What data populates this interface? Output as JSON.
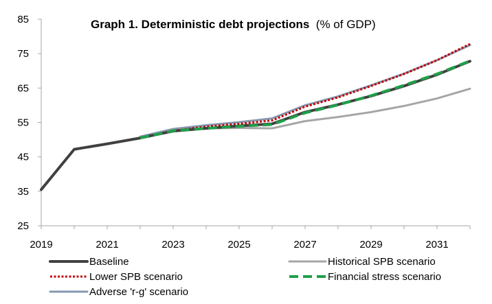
{
  "chart_data": {
    "type": "line",
    "title": "Graph 1. Deterministic debt projections",
    "subtitle": "(% of GDP)",
    "xlabel": "",
    "ylabel": "",
    "x": [
      2019,
      2020,
      2021,
      2022,
      2023,
      2024,
      2025,
      2026,
      2027,
      2028,
      2029,
      2030,
      2031,
      2032
    ],
    "xlim": [
      2019,
      2032
    ],
    "ylim": [
      25,
      85
    ],
    "x_ticks": [
      2019,
      2021,
      2023,
      2025,
      2027,
      2029,
      2031
    ],
    "y_ticks": [
      25,
      35,
      45,
      55,
      65,
      75,
      85
    ],
    "grid": false,
    "legend_position": "bottom",
    "series": [
      {
        "name": "Baseline",
        "color": "#404040",
        "style": "solid",
        "values": [
          35.5,
          47.2,
          48.8,
          50.5,
          52.5,
          53.3,
          54.0,
          54.6,
          58.0,
          60.2,
          62.7,
          65.6,
          68.9,
          72.8
        ]
      },
      {
        "name": "Historical SPB scenario",
        "color": "#a6a6a6",
        "style": "solid",
        "values": [
          null,
          null,
          null,
          50.5,
          52.8,
          53.3,
          53.4,
          53.3,
          55.4,
          56.6,
          58.0,
          59.8,
          62.0,
          64.8
        ]
      },
      {
        "name": "Lower SPB scenario",
        "color": "#c00000",
        "style": "dotted",
        "values": [
          null,
          null,
          null,
          50.5,
          52.6,
          53.8,
          54.6,
          55.6,
          59.6,
          62.3,
          65.6,
          69.1,
          73.1,
          77.8
        ]
      },
      {
        "name": "Financial stress scenario",
        "color": "#1fa049",
        "style": "dashed",
        "values": [
          null,
          null,
          null,
          50.5,
          52.6,
          53.3,
          53.9,
          54.4,
          57.8,
          60.1,
          62.8,
          65.8,
          69.1,
          72.9
        ]
      },
      {
        "name": "Adverse 'r-g' scenario",
        "color": "#8497b0",
        "style": "solid",
        "values": [
          null,
          null,
          null,
          50.9,
          53.1,
          54.2,
          55.1,
          56.2,
          60.0,
          62.6,
          65.8,
          69.2,
          73.1,
          77.5
        ]
      }
    ]
  }
}
